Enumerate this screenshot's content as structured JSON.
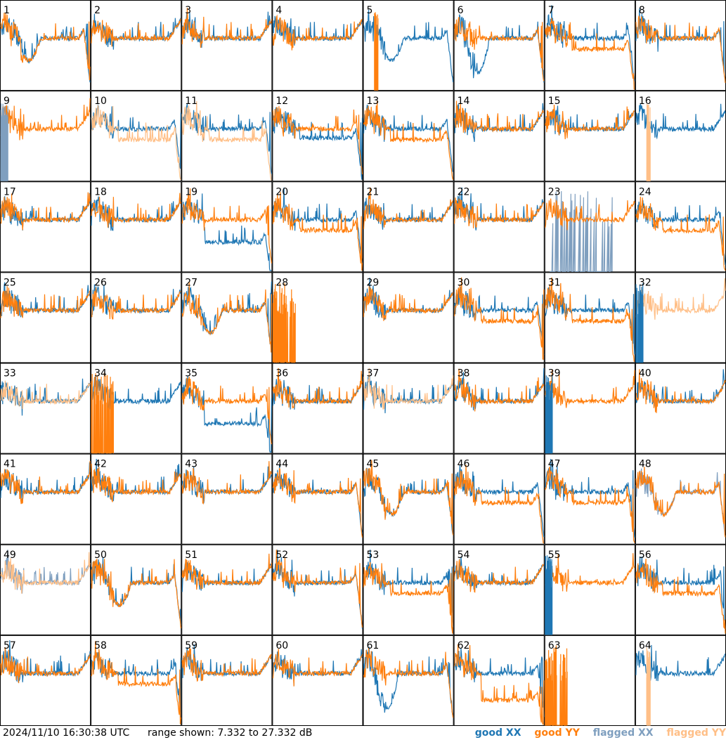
{
  "footer": {
    "timestamp": "2024/11/10 16:30:38 UTC",
    "range_text": "range shown: 7.332 to 27.332 dB"
  },
  "legend": {
    "good_xx": "good XX",
    "good_yy": "good YY",
    "flagged_xx": "flagged XX",
    "flagged_yy": "flagged YY"
  },
  "colors": {
    "good_xx": "#1f77b4",
    "good_yy": "#ff7f0e",
    "flagged_xx": "#7f9fbf",
    "flagged_yy": "#ffbf87"
  },
  "chart_data": {
    "type": "line",
    "ylim": [
      7.332,
      27.332
    ],
    "yunit": "dB",
    "grid_layout": "8x8 small multiples, one panel per tile",
    "panels": [
      {
        "label": "1",
        "xx": "good",
        "yy": "good",
        "shape": "dip"
      },
      {
        "label": "2",
        "xx": "good",
        "yy": "good",
        "shape": "flat"
      },
      {
        "label": "3",
        "xx": "good",
        "yy": "good",
        "shape": "flat"
      },
      {
        "label": "4",
        "xx": "good",
        "yy": "good",
        "shape": "flat"
      },
      {
        "label": "5",
        "xx": "good",
        "yy": "good",
        "shape": "xx-only-dip"
      },
      {
        "label": "6",
        "xx": "good",
        "yy": "good",
        "shape": "dip-split"
      },
      {
        "label": "7",
        "xx": "good",
        "yy": "good",
        "shape": "split"
      },
      {
        "label": "8",
        "xx": "good",
        "yy": "good",
        "shape": "flat-drop"
      },
      {
        "label": "9",
        "xx": "flagged",
        "yy": "good",
        "shape": "yy-only"
      },
      {
        "label": "10",
        "xx": "good",
        "yy": "flagged",
        "shape": "split"
      },
      {
        "label": "11",
        "xx": "good",
        "yy": "flagged",
        "shape": "split"
      },
      {
        "label": "12",
        "xx": "good",
        "yy": "good",
        "shape": "split-drop"
      },
      {
        "label": "13",
        "xx": "good",
        "yy": "good",
        "shape": "split"
      },
      {
        "label": "14",
        "xx": "good",
        "yy": "good",
        "shape": "flat"
      },
      {
        "label": "15",
        "xx": "good",
        "yy": "good",
        "shape": "flat"
      },
      {
        "label": "16",
        "xx": "good",
        "yy": "flagged",
        "shape": "xx-only"
      },
      {
        "label": "17",
        "xx": "good",
        "yy": "good",
        "shape": "flat"
      },
      {
        "label": "18",
        "xx": "good",
        "yy": "good",
        "shape": "flat"
      },
      {
        "label": "19",
        "xx": "good",
        "yy": "good",
        "shape": "xx-low"
      },
      {
        "label": "20",
        "xx": "good",
        "yy": "good",
        "shape": "split"
      },
      {
        "label": "21",
        "xx": "good",
        "yy": "good",
        "shape": "flat"
      },
      {
        "label": "22",
        "xx": "good",
        "yy": "good",
        "shape": "flat"
      },
      {
        "label": "23",
        "xx": "flagged",
        "yy": "good",
        "shape": "noisy-xx"
      },
      {
        "label": "24",
        "xx": "good",
        "yy": "good",
        "shape": "split"
      },
      {
        "label": "25",
        "xx": "good",
        "yy": "good",
        "shape": "flat"
      },
      {
        "label": "26",
        "xx": "good",
        "yy": "good",
        "shape": "flat"
      },
      {
        "label": "27",
        "xx": "good",
        "yy": "good",
        "shape": "dip"
      },
      {
        "label": "28",
        "xx": "good",
        "yy": "good",
        "shape": "spikes"
      },
      {
        "label": "29",
        "xx": "good",
        "yy": "good",
        "shape": "flat"
      },
      {
        "label": "30",
        "xx": "good",
        "yy": "good",
        "shape": "split"
      },
      {
        "label": "31",
        "xx": "good",
        "yy": "good",
        "shape": "split"
      },
      {
        "label": "32",
        "xx": "good",
        "yy": "flagged",
        "shape": "yy-only"
      },
      {
        "label": "33",
        "xx": "good",
        "yy": "flagged",
        "shape": "flat"
      },
      {
        "label": "34",
        "xx": "good",
        "yy": "good",
        "shape": "xx-spikes"
      },
      {
        "label": "35",
        "xx": "good",
        "yy": "good",
        "shape": "xx-low"
      },
      {
        "label": "36",
        "xx": "good",
        "yy": "good",
        "shape": "flat"
      },
      {
        "label": "37",
        "xx": "good",
        "yy": "flagged",
        "shape": "flat"
      },
      {
        "label": "38",
        "xx": "good",
        "yy": "good",
        "shape": "flat"
      },
      {
        "label": "39",
        "xx": "good",
        "yy": "good",
        "shape": "yy-only"
      },
      {
        "label": "40",
        "xx": "good",
        "yy": "good",
        "shape": "flat"
      },
      {
        "label": "41",
        "xx": "good",
        "yy": "good",
        "shape": "flat"
      },
      {
        "label": "42",
        "xx": "good",
        "yy": "good",
        "shape": "flat"
      },
      {
        "label": "43",
        "xx": "good",
        "yy": "good",
        "shape": "flat"
      },
      {
        "label": "44",
        "xx": "good",
        "yy": "good",
        "shape": "flat-drop"
      },
      {
        "label": "45",
        "xx": "good",
        "yy": "good",
        "shape": "dip"
      },
      {
        "label": "46",
        "xx": "good",
        "yy": "good",
        "shape": "split"
      },
      {
        "label": "47",
        "xx": "good",
        "yy": "good",
        "shape": "split"
      },
      {
        "label": "48",
        "xx": "flagged",
        "yy": "good",
        "shape": "dip"
      },
      {
        "label": "49",
        "xx": "flagged",
        "yy": "flagged",
        "shape": "flat"
      },
      {
        "label": "50",
        "xx": "good",
        "yy": "good",
        "shape": "dip"
      },
      {
        "label": "51",
        "xx": "good",
        "yy": "good",
        "shape": "flat"
      },
      {
        "label": "52",
        "xx": "good",
        "yy": "good",
        "shape": "flat-drop"
      },
      {
        "label": "53",
        "xx": "good",
        "yy": "good",
        "shape": "split"
      },
      {
        "label": "54",
        "xx": "good",
        "yy": "good",
        "shape": "flat"
      },
      {
        "label": "55",
        "xx": "good",
        "yy": "good",
        "shape": "yy-only"
      },
      {
        "label": "56",
        "xx": "good",
        "yy": "good",
        "shape": "split"
      },
      {
        "label": "57",
        "xx": "good",
        "yy": "good",
        "shape": "flat"
      },
      {
        "label": "58",
        "xx": "good",
        "yy": "good",
        "shape": "split"
      },
      {
        "label": "59",
        "xx": "good",
        "yy": "good",
        "shape": "flat"
      },
      {
        "label": "60",
        "xx": "good",
        "yy": "good",
        "shape": "flat"
      },
      {
        "label": "61",
        "xx": "good",
        "yy": "good",
        "shape": "dip-split"
      },
      {
        "label": "62",
        "xx": "good",
        "yy": "good",
        "shape": "split-low"
      },
      {
        "label": "63",
        "xx": "good",
        "yy": "good",
        "shape": "spikes"
      },
      {
        "label": "64",
        "xx": "good",
        "yy": "flagged",
        "shape": "xx-only"
      }
    ]
  }
}
